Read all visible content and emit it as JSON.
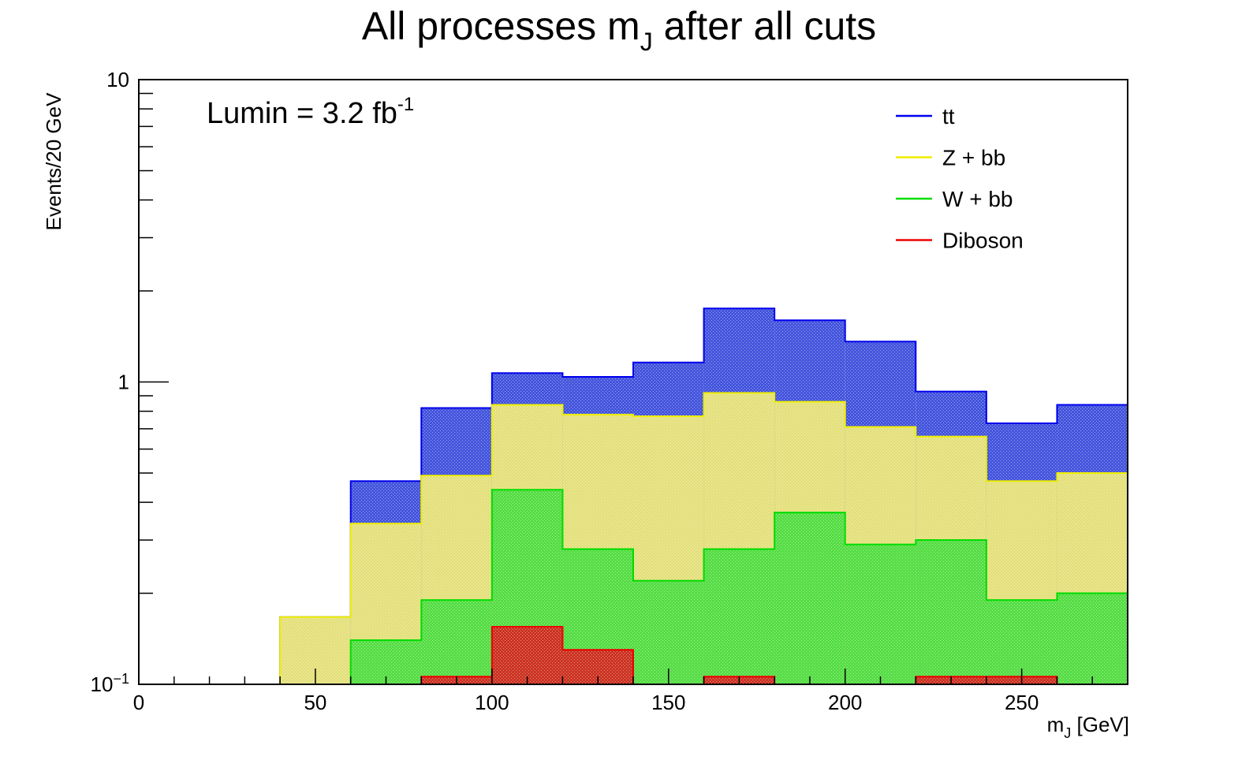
{
  "chart_data": {
    "type": "area",
    "title": "All processes m",
    "title_subscript": "J",
    "title_suffix": " after all cuts",
    "xlabel": "m",
    "xlabel_subscript": "J",
    "xlabel_suffix": " [GeV]",
    "ylabel": "Events/20 GeV",
    "annotation": {
      "text": "Lumin = 3.2 fb",
      "superscript": "-1"
    },
    "xlim": [
      0,
      280
    ],
    "ylim": [
      0.1,
      10
    ],
    "y_scale": "log",
    "x_ticks": [
      "0",
      "50",
      "100",
      "150",
      "200",
      "250"
    ],
    "x_tick_values": [
      0,
      50,
      100,
      150,
      200,
      250
    ],
    "y_tick_labels": [
      {
        "value": 10,
        "base": "10",
        "sup": ""
      },
      {
        "value": 1,
        "base": "1",
        "sup": ""
      },
      {
        "value": 0.1,
        "base": "10",
        "sup": "−1"
      }
    ],
    "legend_position": "top-right",
    "bin_edges": [
      0,
      20,
      40,
      60,
      80,
      100,
      120,
      140,
      160,
      180,
      200,
      220,
      240,
      260,
      280
    ],
    "series": [
      {
        "name": "tt",
        "color": "#0000ee",
        "fill": "#4455dd",
        "values": [
          0.1,
          0.1,
          0.167,
          0.47,
          0.82,
          1.07,
          1.04,
          1.16,
          1.75,
          1.6,
          1.36,
          0.93,
          0.73,
          0.84
        ]
      },
      {
        "name": "Z + bb",
        "color": "#eeee00",
        "fill": "#e4e07c",
        "values": [
          0.1,
          0.1,
          0.167,
          0.34,
          0.49,
          0.84,
          0.78,
          0.77,
          0.92,
          0.86,
          0.71,
          0.66,
          0.47,
          0.5
        ]
      },
      {
        "name": "W + bb",
        "color": "#00dd00",
        "fill": "#55dd44",
        "values": [
          0.1,
          0.1,
          0.1,
          0.14,
          0.19,
          0.44,
          0.28,
          0.22,
          0.28,
          0.37,
          0.29,
          0.3,
          0.19,
          0.2
        ]
      },
      {
        "name": "Diboson",
        "color": "#ee0000",
        "fill": "#cc3322",
        "values": [
          0.1,
          0.1,
          0.1,
          0.1,
          0.106,
          0.155,
          0.13,
          0.1,
          0.106,
          0.1,
          0.1,
          0.106,
          0.106,
          0.1
        ]
      }
    ]
  }
}
